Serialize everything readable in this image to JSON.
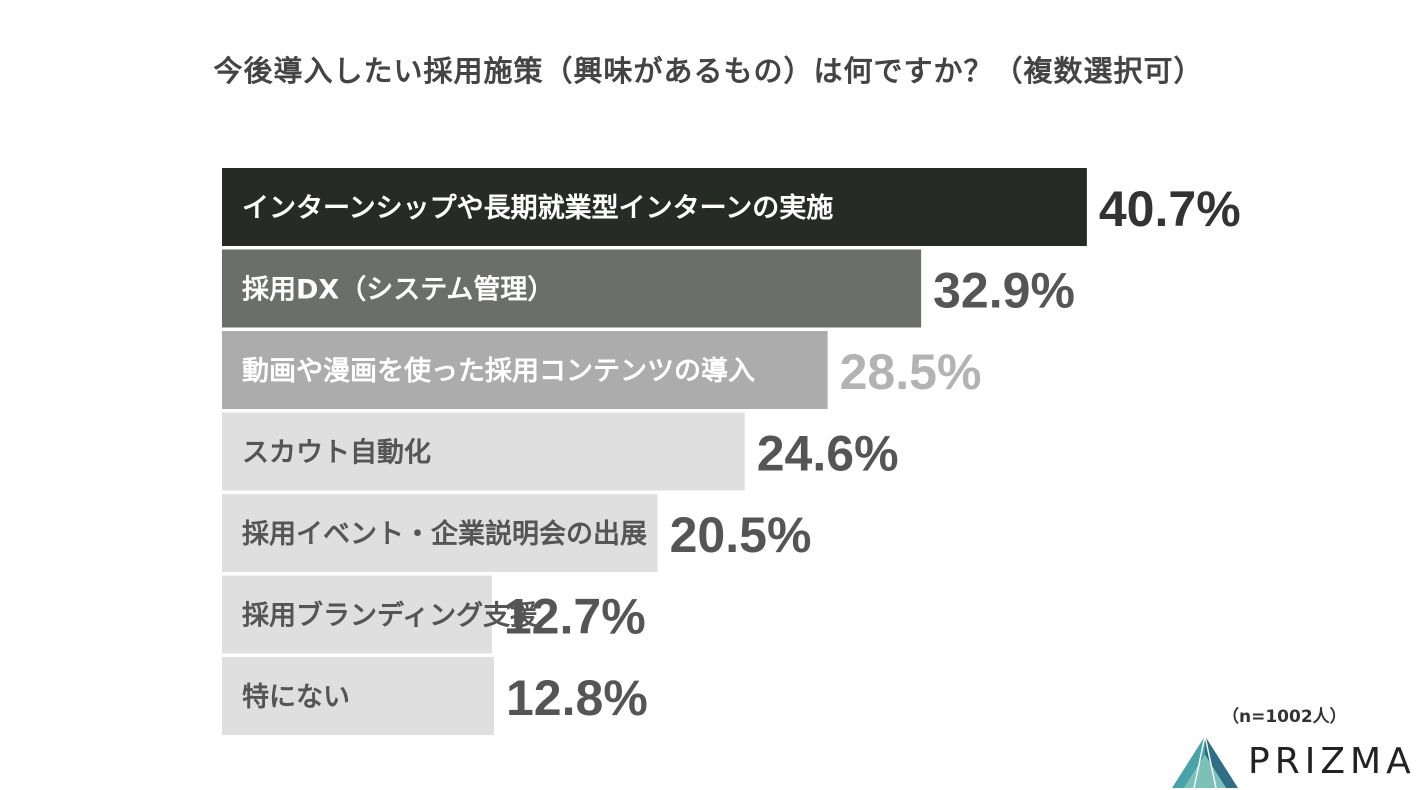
{
  "title": "今後導入したい採用施策（興味があるもの）は何ですか？（複数選択可）",
  "note": "（n=1002人）",
  "logo_text": "PRIZMA",
  "chart_data": {
    "type": "bar",
    "orientation": "horizontal",
    "categories": [
      "インターンシップや長期就業型インターンの実施",
      "採用DX（システム管理）",
      "動画や漫画を使った採用コンテンツの導入",
      "スカウト自動化",
      "採用イベント・企業説明会の出展",
      "採用ブランディング支援",
      "特にない"
    ],
    "values": [
      40.7,
      32.9,
      28.5,
      24.6,
      20.5,
      12.7,
      12.8
    ],
    "value_labels": [
      "40.7%",
      "32.9%",
      "28.5%",
      "24.6%",
      "20.5%",
      "12.7%",
      "12.8%"
    ],
    "unit": "%",
    "bar_colors": [
      "#262b26",
      "#6b6e69",
      "#acacac",
      "#dfdfdf",
      "#dfdfdf",
      "#dfdfdf",
      "#dfdfdf"
    ],
    "category_label_colors": [
      "#ffffff",
      "#ffffff",
      "#ffffff",
      "#555555",
      "#555555",
      "#555555",
      "#555555"
    ],
    "value_label_colors": [
      "#333333",
      "#555555",
      "#b3b3b3",
      "#555555",
      "#555555",
      "#555555",
      "#555555"
    ]
  }
}
